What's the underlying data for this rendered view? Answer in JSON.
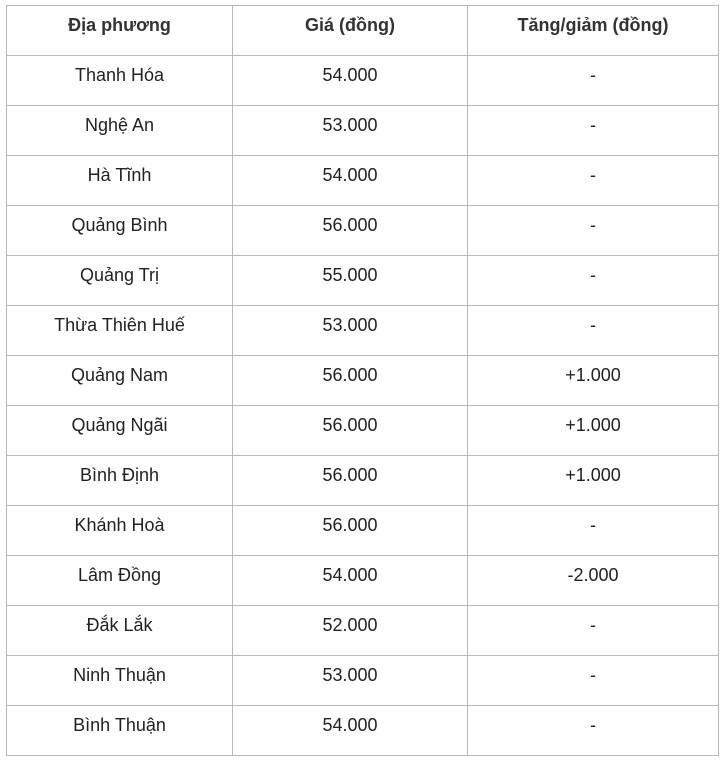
{
  "table": {
    "headers": [
      "Địa phương",
      "Giá (đồng)",
      "Tăng/giảm (đồng)"
    ],
    "rows": [
      [
        "Thanh Hóa",
        "54.000",
        "-"
      ],
      [
        "Nghệ An",
        "53.000",
        "-"
      ],
      [
        "Hà Tĩnh",
        "54.000",
        "-"
      ],
      [
        "Quảng Bình",
        "56.000",
        "-"
      ],
      [
        "Quảng Trị",
        "55.000",
        "-"
      ],
      [
        "Thừa Thiên Huế",
        "53.000",
        "-"
      ],
      [
        "Quảng Nam",
        "56.000",
        "+1.000"
      ],
      [
        "Quảng Ngãi",
        "56.000",
        "+1.000"
      ],
      [
        "Bình Định",
        "56.000",
        "+1.000"
      ],
      [
        "Khánh Hoà",
        "56.000",
        "-"
      ],
      [
        "Lâm Đồng",
        "54.000",
        "-2.000"
      ],
      [
        "Đắk Lắk",
        "52.000",
        "-"
      ],
      [
        "Ninh Thuận",
        "53.000",
        "-"
      ],
      [
        "Bình Thuận",
        "54.000",
        "-"
      ]
    ]
  }
}
